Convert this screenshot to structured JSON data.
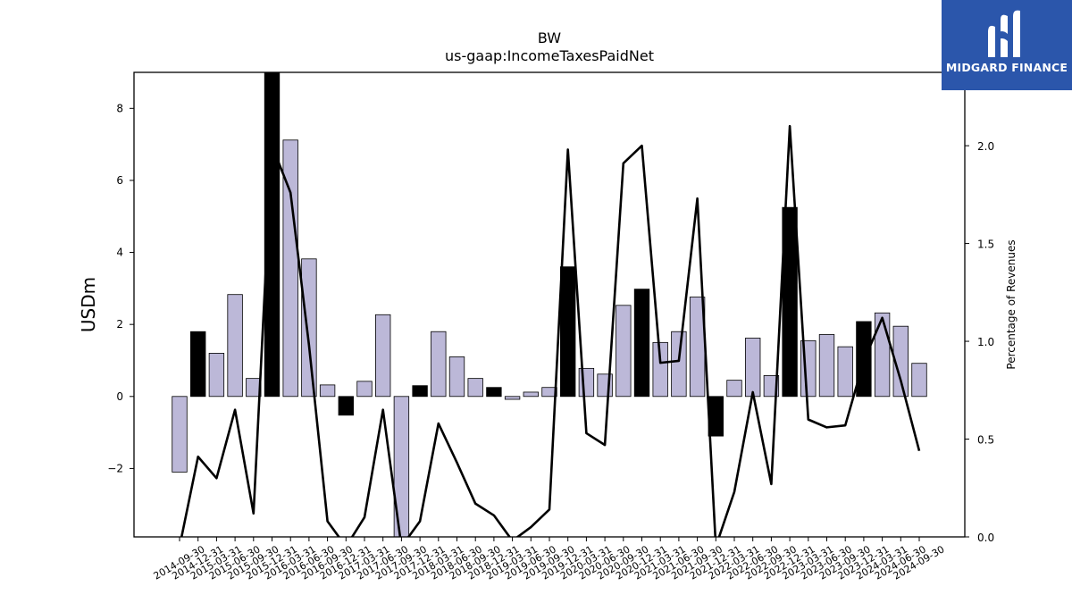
{
  "chart_data": {
    "type": "bar",
    "title": "BW",
    "subtitle": "us-gaap:IncomeTaxesPaidNet",
    "ylabel": "USDm",
    "y2label": "Percentage of Revenues",
    "ylim": [
      -3.9,
      9.0
    ],
    "y2lim": [
      0.0,
      2.375
    ],
    "yticks": [
      -2,
      0,
      2,
      4,
      6,
      8
    ],
    "y2ticks": [
      0.0,
      0.5,
      1.0,
      1.5,
      2.0
    ],
    "categories": [
      "2014-09-30",
      "2014-12-31",
      "2015-03-31",
      "2015-06-30",
      "2015-09-30",
      "2015-12-31",
      "2016-03-31",
      "2016-06-30",
      "2016-09-30",
      "2016-12-31",
      "2017-03-31",
      "2017-06-30",
      "2017-09-30",
      "2017-12-31",
      "2018-03-31",
      "2018-06-30",
      "2018-09-30",
      "2018-12-31",
      "2019-03-31",
      "2019-06-30",
      "2019-09-30",
      "2019-12-31",
      "2020-03-31",
      "2020-06-30",
      "2020-09-30",
      "2020-12-31",
      "2021-03-31",
      "2021-06-30",
      "2021-09-30",
      "2021-12-31",
      "2022-03-31",
      "2022-06-30",
      "2022-09-30",
      "2022-12-31",
      "2023-03-31",
      "2023-06-30",
      "2023-09-30",
      "2023-12-31",
      "2024-03-31",
      "2024-06-30",
      "2024-09-30"
    ],
    "series": [
      {
        "type": "bar",
        "values": [
          -2.1,
          1.8,
          1.2,
          2.83,
          0.5,
          9.0,
          7.12,
          3.82,
          0.32,
          -0.52,
          0.42,
          2.27,
          -3.9,
          0.3,
          1.8,
          1.1,
          0.5,
          0.25,
          -0.08,
          0.12,
          0.25,
          3.6,
          0.78,
          0.62,
          2.53,
          2.98,
          1.5,
          1.8,
          2.76,
          -1.1,
          0.45,
          1.62,
          0.58,
          5.25,
          1.55,
          1.72,
          1.38,
          2.08,
          2.32,
          1.95,
          0.92
        ],
        "highlight": [
          false,
          true,
          false,
          false,
          false,
          true,
          false,
          false,
          false,
          true,
          false,
          false,
          false,
          true,
          false,
          false,
          false,
          true,
          false,
          false,
          false,
          true,
          false,
          false,
          false,
          true,
          false,
          false,
          false,
          true,
          false,
          false,
          false,
          true,
          false,
          false,
          false,
          true,
          false,
          false,
          false
        ]
      },
      {
        "type": "line",
        "values": [
          -0.05,
          0.41,
          0.3,
          0.65,
          0.12,
          2.0,
          1.76,
          0.98,
          0.08,
          -0.05,
          0.1,
          0.65,
          -0.05,
          0.08,
          0.58,
          0.38,
          0.17,
          0.11,
          -0.02,
          0.05,
          0.14,
          1.98,
          0.53,
          0.47,
          1.91,
          2.0,
          0.89,
          0.9,
          1.73,
          -0.05,
          0.23,
          0.74,
          0.27,
          2.1,
          0.6,
          0.56,
          0.57,
          0.9,
          1.12,
          0.8,
          0.44
        ]
      }
    ],
    "grid": false
  },
  "colors": {
    "bar": "#bcb8d8",
    "highlight": "#000000",
    "line": "#000000",
    "logo_bg": "#2b56ab"
  },
  "logo": {
    "text": "MIDGARD FINANCE"
  }
}
